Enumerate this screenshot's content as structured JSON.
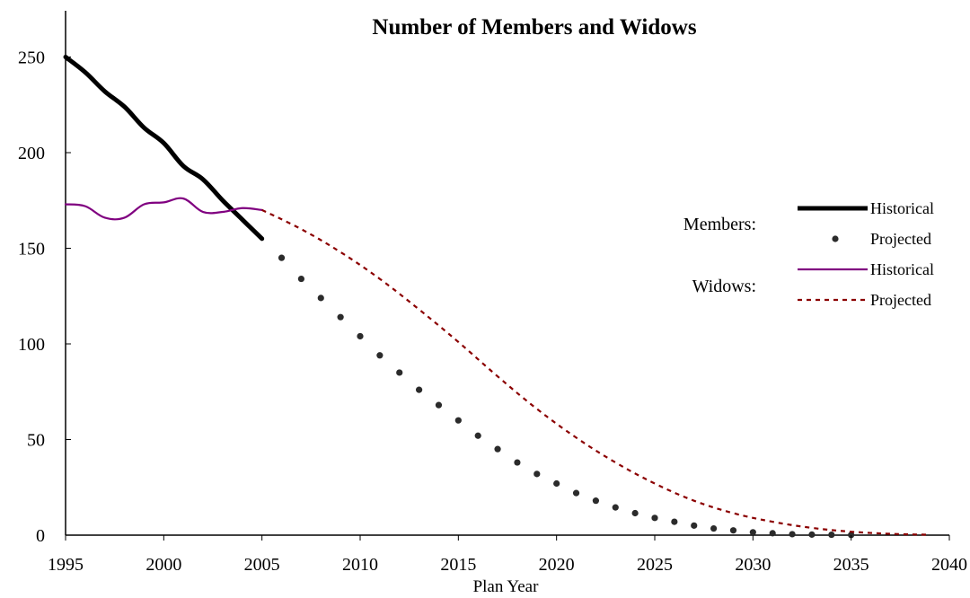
{
  "chart_data": {
    "type": "line",
    "title": "Number of Members and Widows",
    "xlabel": "Plan Year",
    "ylabel": "",
    "xlim": [
      1995,
      2040
    ],
    "ylim": [
      0,
      270
    ],
    "x_ticks": [
      "1995",
      "2000",
      "2005",
      "2010",
      "2015",
      "2020",
      "2025",
      "2030",
      "2035",
      "2040"
    ],
    "y_ticks": [
      "0",
      "50",
      "100",
      "150",
      "200",
      "250"
    ],
    "legend": {
      "placement": "right",
      "groups": [
        {
          "label": "Members:",
          "entries": [
            "Historical",
            "Projected"
          ]
        },
        {
          "label": "Widows:",
          "entries": [
            "Historical",
            "Projected"
          ]
        }
      ]
    },
    "series": [
      {
        "group": "Members",
        "name": "Historical",
        "style": "thick-solid",
        "color": "#000000",
        "x": [
          1995,
          1996,
          1997,
          1998,
          1999,
          2000,
          2001,
          2002,
          2003,
          2004,
          2005
        ],
        "y": [
          250,
          242,
          232,
          224,
          213,
          205,
          193,
          186,
          175,
          165,
          155
        ]
      },
      {
        "group": "Members",
        "name": "Projected",
        "style": "dots",
        "color": "#2b2b2b",
        "x": [
          2006,
          2007,
          2008,
          2009,
          2010,
          2011,
          2012,
          2013,
          2014,
          2015,
          2016,
          2017,
          2018,
          2019,
          2020,
          2021,
          2022,
          2023,
          2024,
          2025,
          2026,
          2027,
          2028,
          2029,
          2030,
          2031,
          2032,
          2033,
          2034,
          2035
        ],
        "y": [
          145,
          134,
          124,
          114,
          104,
          94,
          85,
          76,
          68,
          60,
          52,
          45,
          38,
          32,
          27,
          22,
          18,
          14.5,
          11.5,
          9,
          7,
          5,
          3.5,
          2.5,
          1.5,
          1,
          0.5,
          0.3,
          0.2,
          0.1
        ]
      },
      {
        "group": "Widows",
        "name": "Historical",
        "style": "thin-solid",
        "color": "#800080",
        "x": [
          1995,
          1996,
          1997,
          1998,
          1999,
          2000,
          2001,
          2002,
          2003,
          2004,
          2005
        ],
        "y": [
          173,
          172,
          166,
          166,
          173,
          174,
          176,
          169,
          169,
          171,
          170
        ]
      },
      {
        "group": "Widows",
        "name": "Projected",
        "style": "dashed",
        "color": "#8b0000",
        "x": [
          2005,
          2007,
          2009,
          2011,
          2013,
          2015,
          2017,
          2019,
          2021,
          2023,
          2025,
          2027,
          2029,
          2031,
          2033,
          2035,
          2037,
          2039
        ],
        "y": [
          170,
          160,
          148,
          134,
          118,
          101,
          83,
          66,
          51,
          38,
          27,
          18,
          11.5,
          7,
          3.8,
          1.8,
          0.7,
          0.2
        ]
      }
    ]
  }
}
